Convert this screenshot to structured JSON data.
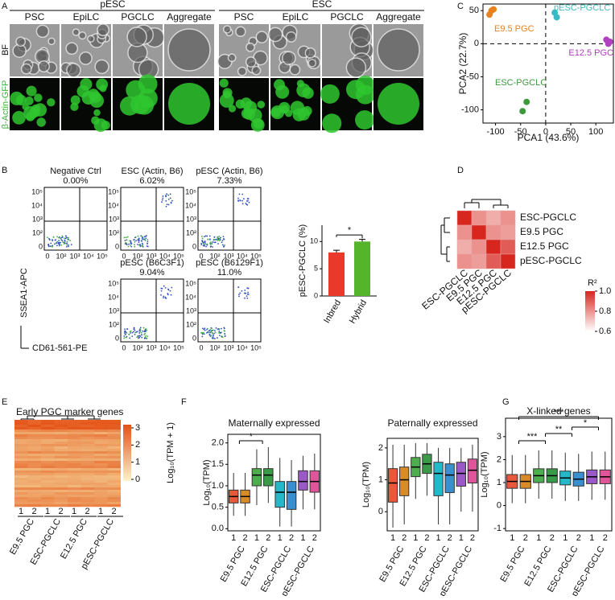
{
  "panel_a": {
    "letter": "A",
    "groups": [
      {
        "name": "pESC",
        "columns": [
          "PSC",
          "EpiLC",
          "PGCLC",
          "Aggregate"
        ]
      },
      {
        "name": "ESC",
        "columns": [
          "PSC",
          "EpiLC",
          "PGCLC",
          "Aggregate"
        ]
      }
    ],
    "rows": [
      "BF",
      "β-Actin-GFP"
    ]
  },
  "panel_b": {
    "letter": "B",
    "plots": [
      {
        "title": "Negative Ctrl",
        "percent": "0.00%"
      },
      {
        "title": "ESC (Actin, B6)",
        "percent": "6.02%"
      },
      {
        "title": "pESC (Actin, B6)",
        "percent": "7.33%"
      },
      {
        "title": "pESC (B6C3F1)",
        "percent": "9.04%"
      },
      {
        "title": "pESC (B6129F1)",
        "percent": "11.0%"
      }
    ],
    "axis_ticks": [
      "0",
      "10²",
      "10³",
      "10⁴",
      "10⁵"
    ],
    "x_label": "CD61-561-PE",
    "y_label": "SSEA1-APC"
  },
  "panel_e": {
    "letter": "E",
    "title": "Early PGC marker genes",
    "colorbar_label": "Log₁₀(TPM + 1)",
    "colorbar_ticks": [
      0,
      1,
      2,
      3
    ],
    "replicates": [
      "1",
      "2"
    ],
    "groups": [
      "E9.5 PGC",
      "ESC-PGCLC",
      "E12.5 PGC",
      "pESC-PGCLC"
    ]
  },
  "chart_data": [
    {
      "type": "scatter",
      "letter": "C",
      "x_label": "PCA1 (43.6%)",
      "y_label": "PCA2 (22.7%)",
      "xlim": [
        -125,
        135
      ],
      "ylim": [
        -120,
        60
      ],
      "xticks": [
        -100,
        -50,
        0,
        50,
        100
      ],
      "yticks": [
        -100,
        -50,
        0,
        50
      ],
      "series": [
        {
          "name": "E9.5 PGC",
          "color": "#e8821e",
          "x": [
            -112,
            -108,
            -104
          ],
          "y": [
            44,
            50,
            52
          ]
        },
        {
          "name": "pESC-PGCLC",
          "color": "#3bb9c4",
          "x": [
            18,
            22
          ],
          "y": [
            47,
            40
          ]
        },
        {
          "name": "E12.5 PGC",
          "color": "#b040c0",
          "x": [
            121,
            125,
            128
          ],
          "y": [
            6,
            0,
            3
          ]
        },
        {
          "name": "ESC-PGCLC",
          "color": "#3c9a3c",
          "x": [
            -38,
            -46
          ],
          "y": [
            -88,
            -102
          ]
        }
      ]
    },
    {
      "type": "bar",
      "y_label": "pESC-PGCLC (%)",
      "categories": [
        "Inbred",
        "Hybrid"
      ],
      "values": [
        8,
        10
      ],
      "errors": [
        0.4,
        0.4
      ],
      "colors": [
        "#e8392b",
        "#55b52a"
      ],
      "ylim": [
        0,
        13
      ],
      "yticks": [
        0,
        5,
        10
      ],
      "significance": "*"
    },
    {
      "type": "heatmap",
      "letter": "D",
      "rows": [
        "ESC-PGCLC",
        "E9.5 PGC",
        "E12.5 PGC",
        "pESC-PGCLC"
      ],
      "columns": [
        "ESC-PGCLC",
        "E9.5 PGC",
        "E12.5 PGC",
        "pESC-PGCLC"
      ],
      "values": [
        [
          1,
          0.8,
          0.75,
          0.8
        ],
        [
          0.8,
          1,
          0.8,
          0.78
        ],
        [
          0.75,
          0.8,
          1,
          0.9
        ],
        [
          0.8,
          0.78,
          0.9,
          1
        ]
      ],
      "colorbar_label": "R²",
      "clim": [
        0.6,
        1
      ],
      "cticks": [
        0.6,
        0.8,
        {
          "value": 1,
          "label": "1.0"
        }
      ]
    },
    {
      "type": "box",
      "letter": "F",
      "title": "Maternally expressed",
      "y_label": "Log₁₀(TPM)",
      "groups": [
        "E9.5 PGC",
        "E12.5 PGC",
        "ESC-PGCLC",
        "pESC-PGCLC"
      ],
      "categories": [
        "1",
        "2",
        "1",
        "2",
        "1",
        "2",
        "1",
        "2"
      ],
      "colors": [
        "#e8583a",
        "#d98b2a",
        "#4cae4c",
        "#3a9a48",
        "#25b8c8",
        "#3a8fd0",
        "#9b59c7",
        "#e0559a"
      ],
      "min": [
        0.3,
        0.3,
        0.55,
        0.6,
        0.05,
        0.05,
        0.45,
        0.45
      ],
      "q1": [
        0.6,
        0.6,
        1.0,
        1.0,
        0.5,
        0.45,
        0.9,
        0.85
      ],
      "median": [
        0.75,
        0.75,
        1.25,
        1.25,
        0.85,
        0.85,
        1.1,
        1.1
      ],
      "q3": [
        0.9,
        0.9,
        1.4,
        1.4,
        1.1,
        1.1,
        1.35,
        1.35
      ],
      "max": [
        1.3,
        1.3,
        1.85,
        1.9,
        1.65,
        1.6,
        1.7,
        1.75
      ],
      "ylim": [
        -0.05,
        2.2
      ],
      "yticks": [
        {
          "value": 0,
          "label": "0.0"
        },
        0.5,
        {
          "value": 1,
          "label": "1.0"
        },
        1.5,
        {
          "value": 2,
          "label": "2.0"
        }
      ],
      "significance": [
        "*"
      ]
    },
    {
      "type": "box",
      "title": "Paternally expressed",
      "y_label": "Log₁₀(TPM)",
      "groups": [
        "E9.5 PGC",
        "E12.5 PGC",
        "ESC-PGCLC",
        "pESC-PGCLC"
      ],
      "categories": [
        "1",
        "2",
        "1",
        "2",
        "1",
        "2",
        "1",
        "2"
      ],
      "colors": [
        "#e8583a",
        "#d98b2a",
        "#4cae4c",
        "#3a9a48",
        "#25b8c8",
        "#3a8fd0",
        "#9b59c7",
        "#e0559a"
      ],
      "min": [
        -0.5,
        -0.4,
        0.4,
        0.5,
        -0.4,
        -0.4,
        0,
        0
      ],
      "q1": [
        0.3,
        0.5,
        1.1,
        1.2,
        0.5,
        0.6,
        0.8,
        0.9
      ],
      "median": [
        0.9,
        1.0,
        1.4,
        1.5,
        1.2,
        1.15,
        1.2,
        1.3
      ],
      "q3": [
        1.35,
        1.4,
        1.7,
        1.8,
        1.55,
        1.5,
        1.55,
        1.65
      ],
      "max": [
        2.1,
        2.1,
        2.15,
        2.15,
        2.0,
        2.0,
        2.0,
        2.1
      ],
      "ylim": [
        -0.6,
        2.3
      ],
      "yticks": [
        0,
        1,
        2
      ],
      "significance": []
    },
    {
      "type": "box",
      "letter": "G",
      "title": "X-linked genes",
      "y_label": "Log₁₀(TPM)",
      "groups": [
        "E9.5 PGC",
        "E12.5 PGC",
        "ESC-PGCLC",
        "pESC-PGCLC"
      ],
      "categories": [
        "1",
        "2",
        "1",
        "2",
        "1",
        "2",
        "1",
        "2"
      ],
      "colors": [
        "#e8583a",
        "#d98b2a",
        "#4cae4c",
        "#3a9a48",
        "#25b8c8",
        "#3a8fd0",
        "#9b59c7",
        "#e0559a"
      ],
      "min": [
        0.1,
        0.1,
        0.3,
        0.3,
        0.2,
        0.2,
        0.25,
        0.25
      ],
      "q1": [
        0.75,
        0.75,
        1.0,
        1.0,
        0.9,
        0.85,
        0.95,
        0.95
      ],
      "median": [
        1.05,
        1.05,
        1.3,
        1.3,
        1.2,
        1.15,
        1.25,
        1.25
      ],
      "q3": [
        1.35,
        1.35,
        1.6,
        1.6,
        1.5,
        1.45,
        1.55,
        1.55
      ],
      "max": [
        2.2,
        2.2,
        2.4,
        2.4,
        2.3,
        2.25,
        2.35,
        2.35
      ],
      "ylim": [
        -1.1,
        3.8
      ],
      "yticks": [
        -1,
        0,
        1,
        2,
        3
      ],
      "significance": [
        "***",
        "*",
        "***",
        "**"
      ]
    }
  ]
}
